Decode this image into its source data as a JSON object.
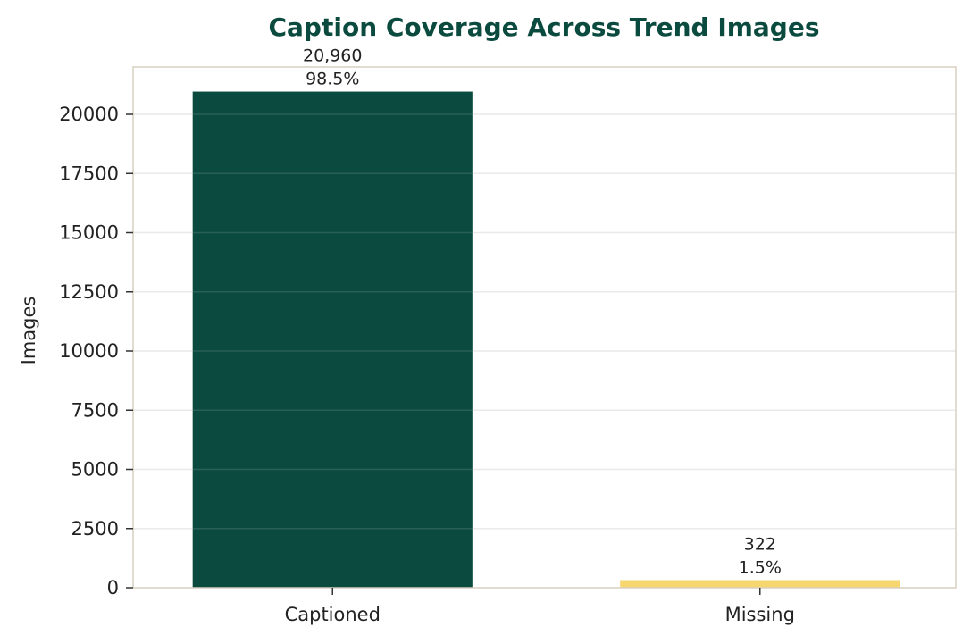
{
  "chart_data": {
    "type": "bar",
    "title": "Caption Coverage Across Trend Images",
    "xlabel": "",
    "ylabel": "Images",
    "categories": [
      "Captioned",
      "Missing"
    ],
    "values": [
      20960,
      322
    ],
    "value_labels": [
      "20,960",
      "322"
    ],
    "percent_labels": [
      "98.5%",
      "1.5%"
    ],
    "ylim": [
      0,
      22000
    ],
    "yticks": [
      0,
      2500,
      5000,
      7500,
      10000,
      12500,
      15000,
      17500,
      20000
    ],
    "grid": true,
    "legend": false,
    "colors": {
      "bars": [
        "#0b4a3e",
        "#f6d66e"
      ],
      "title": "#0b4a3e",
      "frame": "#d8cfc0",
      "grid": "#e8e8e8"
    }
  }
}
